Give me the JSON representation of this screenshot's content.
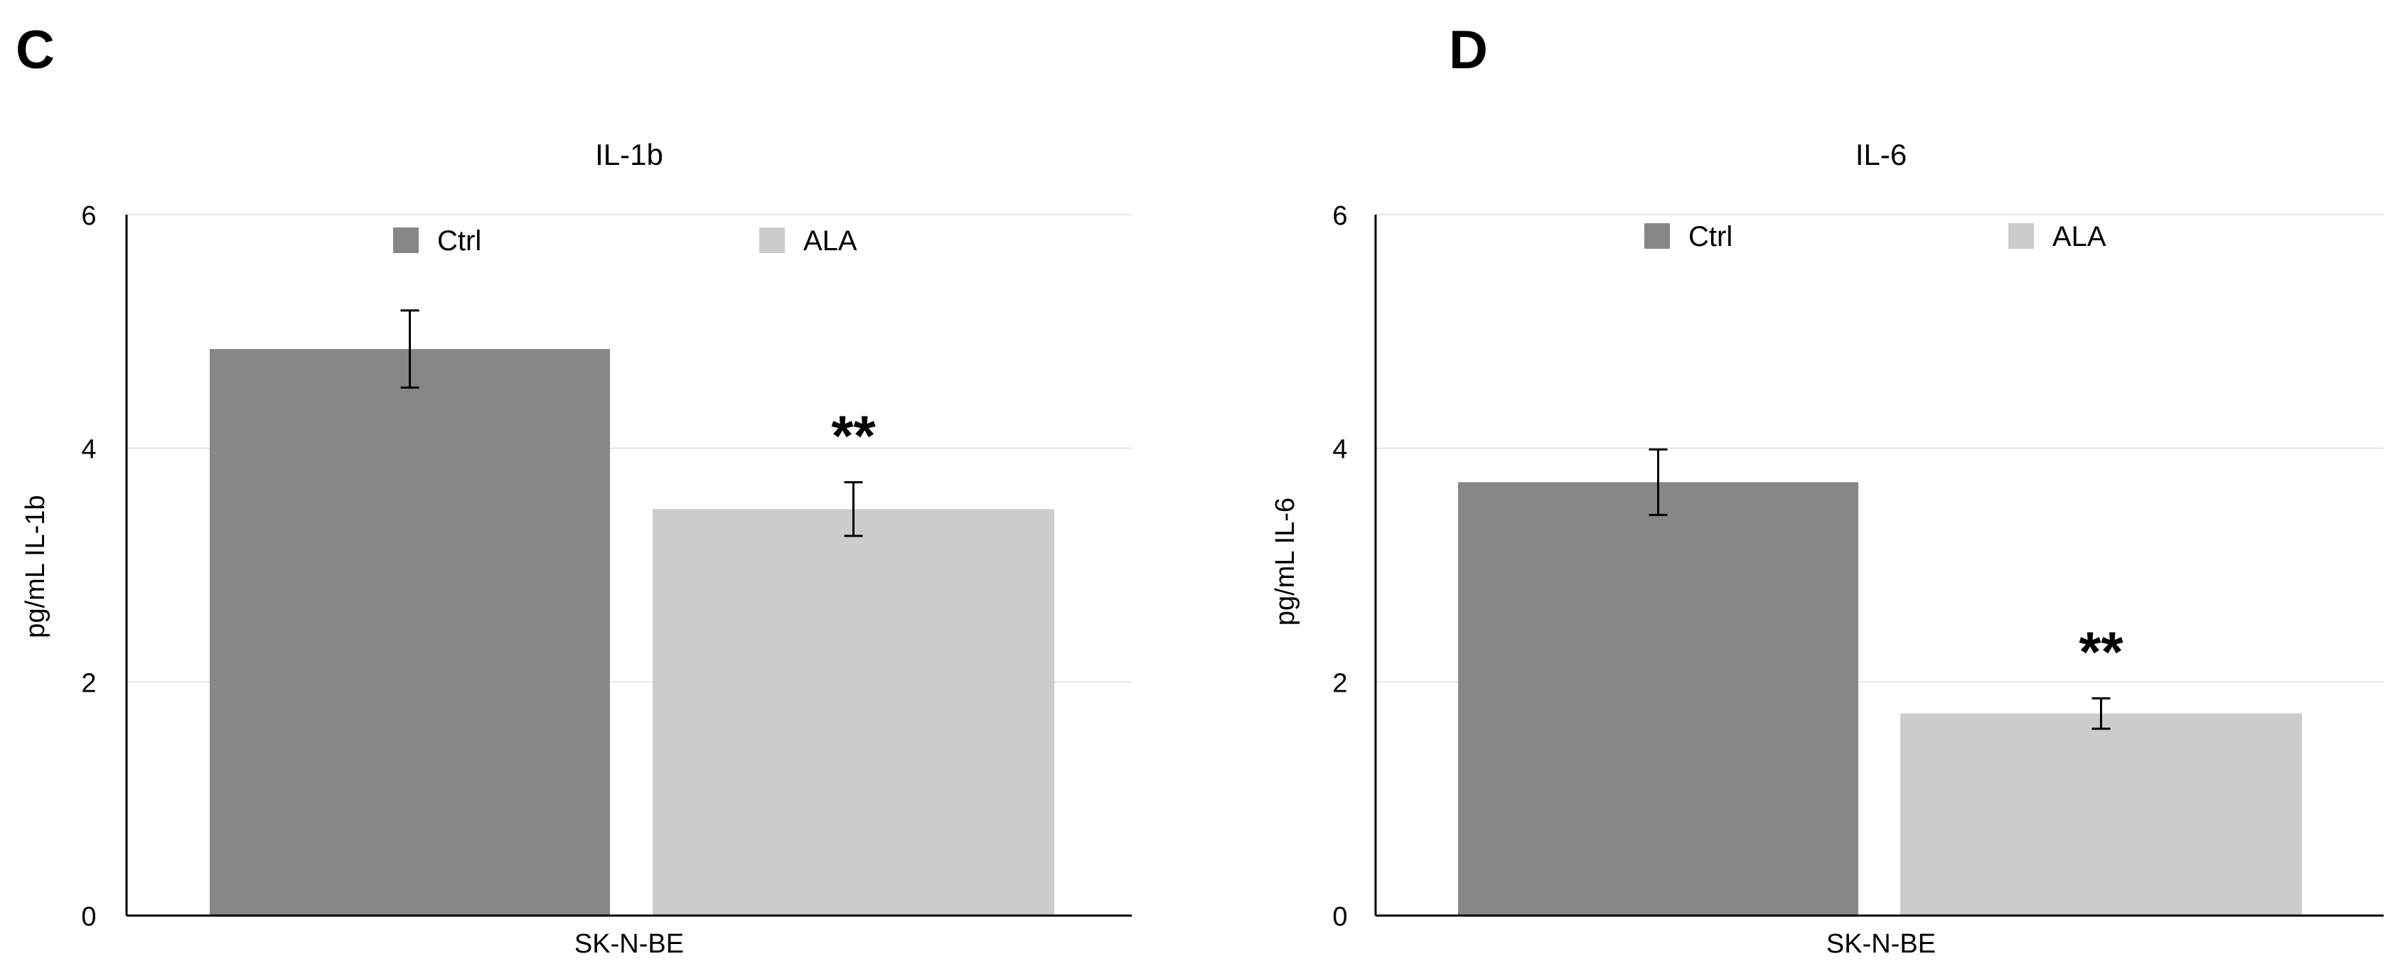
{
  "colors": {
    "ctrl": "#878787",
    "ala": "#cccccc",
    "axis": "#000000",
    "grid": "#e6e6e6",
    "text": "#000000"
  },
  "chart_data": [
    {
      "panel_label": "C",
      "type": "bar",
      "title": "IL-1b",
      "xlabel": "SK-N-BE",
      "ylabel": "pg/mL IL-1b",
      "ylim": [
        0,
        6
      ],
      "yticks": [
        "0",
        "2",
        "4",
        "6"
      ],
      "grid": true,
      "legend_position": "top",
      "categories": [
        "SK-N-BE"
      ],
      "series": [
        {
          "name": "Ctrl",
          "values": [
            4.85
          ],
          "error": [
            0.33
          ],
          "annotation": ""
        },
        {
          "name": "ALA",
          "values": [
            3.48
          ],
          "error": [
            0.23
          ],
          "annotation": "**"
        }
      ]
    },
    {
      "panel_label": "D",
      "type": "bar",
      "title": "IL-6",
      "xlabel": "SK-N-BE",
      "ylabel": "pg/mL IL-6",
      "ylim": [
        0,
        6
      ],
      "yticks": [
        "0",
        "2",
        "4",
        "6"
      ],
      "grid": true,
      "legend_position": "top",
      "categories": [
        "SK-N-BE"
      ],
      "series": [
        {
          "name": "Ctrl",
          "values": [
            3.71
          ],
          "error": [
            0.28
          ],
          "annotation": ""
        },
        {
          "name": "ALA",
          "values": [
            1.73
          ],
          "error": [
            0.13
          ],
          "annotation": "**"
        }
      ]
    }
  ]
}
